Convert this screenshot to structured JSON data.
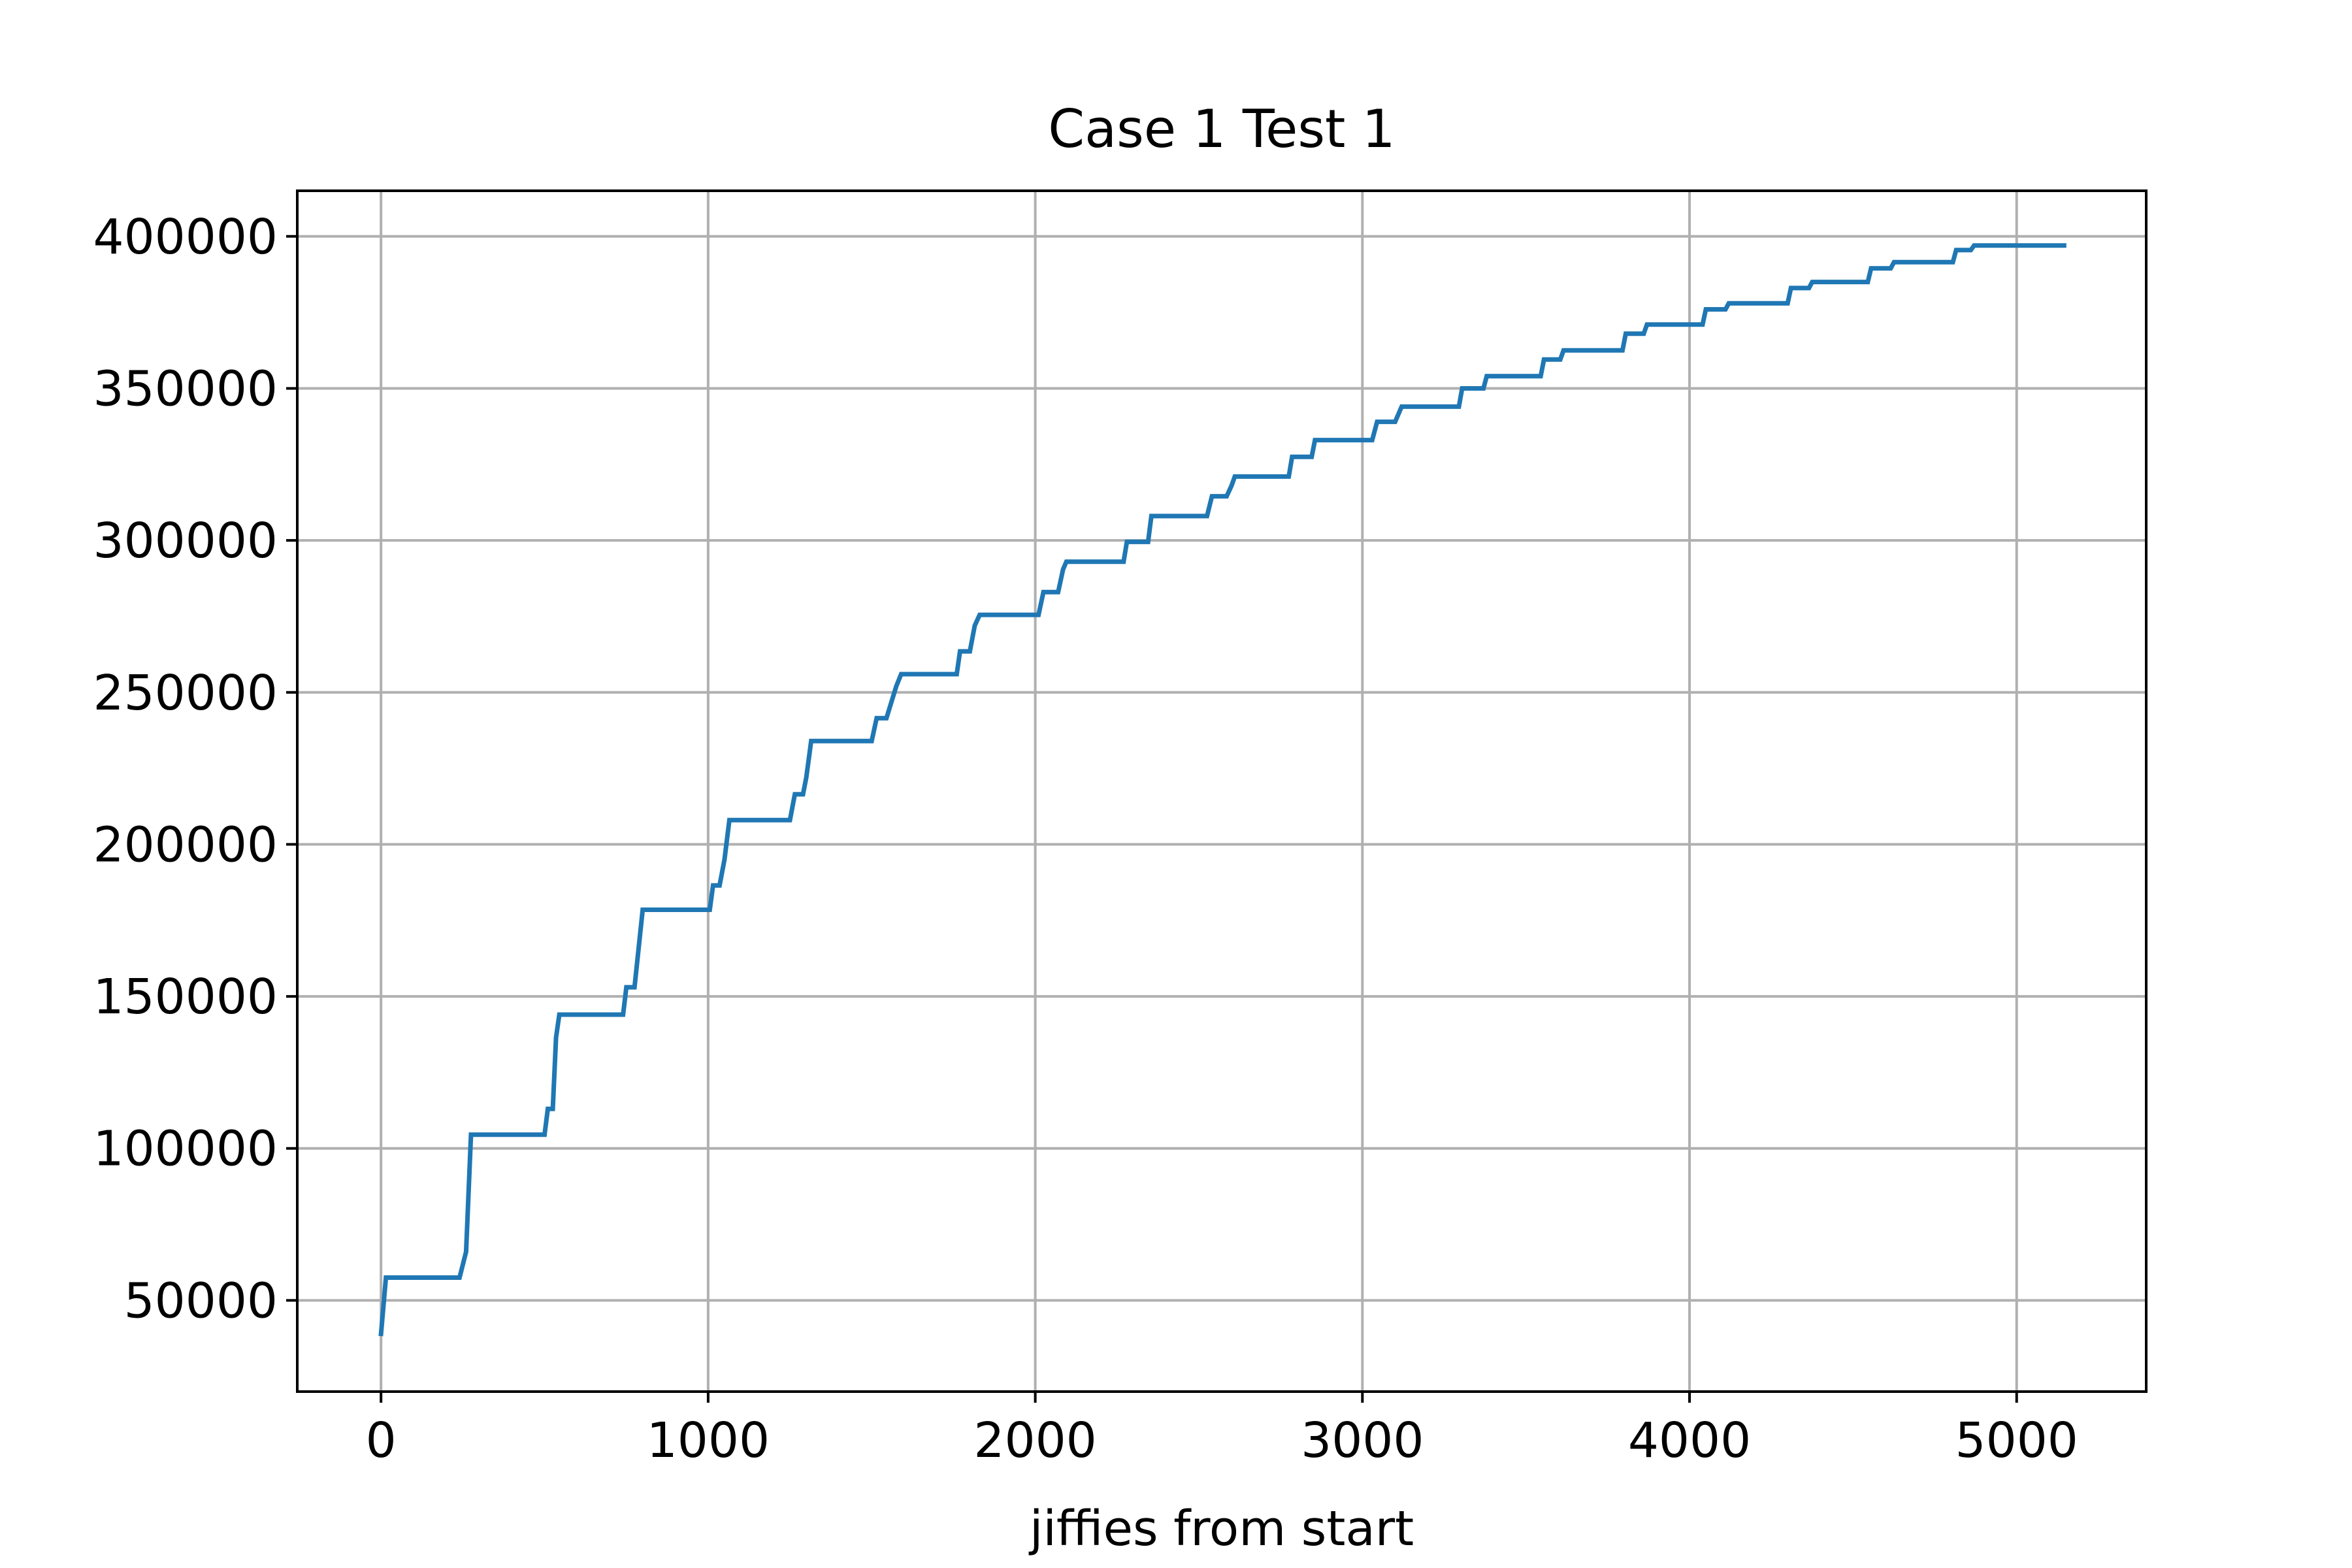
{
  "chart_data": {
    "type": "line",
    "title": "Case 1 Test 1",
    "xlabel": "jiffies from start",
    "ylabel": "",
    "xlim": [
      -256,
      5396
    ],
    "ylim": [
      20000,
      415000
    ],
    "xticks": [
      0,
      1000,
      2000,
      3000,
      4000,
      5000
    ],
    "yticks": [
      50000,
      100000,
      150000,
      200000,
      250000,
      300000,
      350000,
      400000
    ],
    "grid": true,
    "series": [
      {
        "color": "#1f77b4",
        "x": [
          0,
          15,
          240,
          260,
          275,
          500,
          510,
          525,
          535,
          545,
          740,
          750,
          775,
          800,
          810,
          1005,
          1015,
          1035,
          1050,
          1065,
          1250,
          1265,
          1290,
          1300,
          1315,
          1500,
          1515,
          1545,
          1575,
          1590,
          1760,
          1770,
          1800,
          1815,
          1830,
          2010,
          2025,
          2070,
          2085,
          2095,
          2270,
          2280,
          2345,
          2355,
          2525,
          2540,
          2585,
          2600,
          2610,
          2775,
          2785,
          2845,
          2855,
          3030,
          3045,
          3100,
          3120,
          3295,
          3305,
          3370,
          3380,
          3545,
          3555,
          3605,
          3615,
          3795,
          3805,
          3860,
          3870,
          4040,
          4050,
          4110,
          4120,
          4300,
          4310,
          4365,
          4375,
          4545,
          4555,
          4615,
          4625,
          4805,
          4815,
          4860,
          4870,
          5145
        ],
        "y": [
          39000,
          57500,
          57500,
          66000,
          104500,
          104500,
          113000,
          113000,
          136500,
          144000,
          144000,
          153000,
          153000,
          178500,
          178500,
          178500,
          186500,
          186500,
          195000,
          208000,
          208000,
          216500,
          216500,
          222000,
          234000,
          234000,
          241500,
          241500,
          252000,
          256000,
          256000,
          263500,
          263500,
          272000,
          275500,
          275500,
          283000,
          283000,
          290500,
          293000,
          293000,
          299500,
          299500,
          308000,
          308000,
          314500,
          314500,
          318000,
          321000,
          321000,
          327500,
          327500,
          333000,
          333000,
          339000,
          339000,
          344000,
          344000,
          350000,
          350000,
          354000,
          354000,
          359500,
          359500,
          362500,
          362500,
          368000,
          368000,
          371000,
          371000,
          376000,
          376000,
          378000,
          378000,
          383000,
          383000,
          385000,
          385000,
          389500,
          389500,
          391500,
          391500,
          395500,
          395500,
          397000,
          397000
        ]
      }
    ]
  }
}
